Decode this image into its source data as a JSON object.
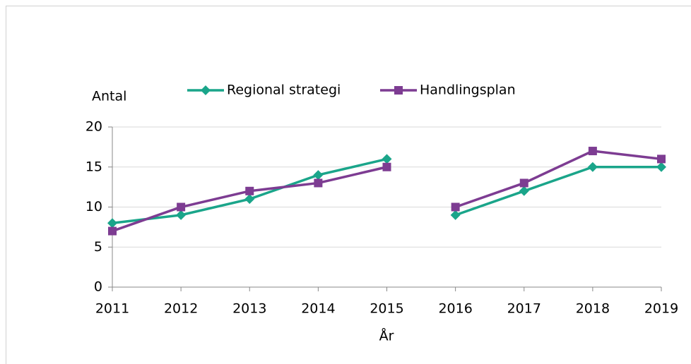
{
  "chart_data": {
    "type": "line",
    "x": [
      2011,
      2012,
      2013,
      2014,
      2015,
      2016,
      2017,
      2018,
      2019
    ],
    "xlim": [
      2011,
      2019
    ],
    "xticks": [
      2011,
      2012,
      2013,
      2014,
      2015,
      2016,
      2017,
      2018,
      2019
    ],
    "ylim": [
      0,
      20
    ],
    "yticks": [
      0,
      5,
      10,
      15,
      20
    ],
    "y_label": "Antal",
    "x_label": "År",
    "grid": true,
    "legend": "top",
    "breaks": [
      4
    ],
    "series": [
      {
        "name": "Regional strategi",
        "color": "#1aa58a",
        "marker": "diamond",
        "values": [
          8,
          9,
          11,
          14,
          16,
          9,
          12,
          15,
          15
        ]
      },
      {
        "name": "Handlingsplan",
        "color": "#7d3c92",
        "marker": "square",
        "values": [
          7,
          10,
          12,
          13,
          15,
          10,
          13,
          17,
          16
        ]
      }
    ]
  }
}
